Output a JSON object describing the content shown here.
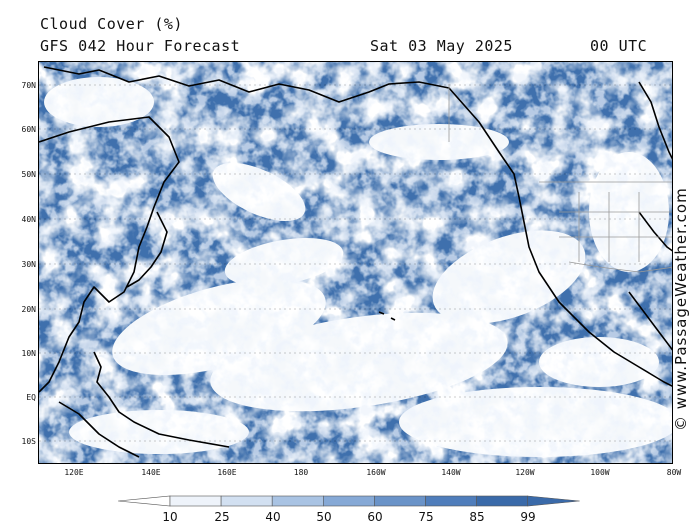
{
  "header": {
    "title": "Cloud Cover (%)",
    "subtitle": "GFS 042 Hour Forecast",
    "date": "Sat 03 May 2025",
    "time": "00 UTC"
  },
  "axes": {
    "lat_labels": [
      "70N",
      "60N",
      "50N",
      "40N",
      "30N",
      "20N",
      "10N",
      "EQ",
      "10S"
    ],
    "lon_labels": [
      "120E",
      "140E",
      "160E",
      "180",
      "160W",
      "140W",
      "120W",
      "100W",
      "80W"
    ]
  },
  "legend": {
    "ticks": [
      "10",
      "25",
      "40",
      "50",
      "60",
      "75",
      "85",
      "99"
    ],
    "colors": [
      "#ffffff",
      "#eef3fa",
      "#d2e0f1",
      "#a9c3e3",
      "#86a9d6",
      "#6a93c8",
      "#4f7dbb",
      "#3a6aa9"
    ]
  },
  "colors": {
    "ocean_cloud": "#3f70ad",
    "cloud_light": "#ffffff",
    "coast": "#000000",
    "border": "#999999"
  },
  "watermark": "© www.PassageWeather.com"
}
